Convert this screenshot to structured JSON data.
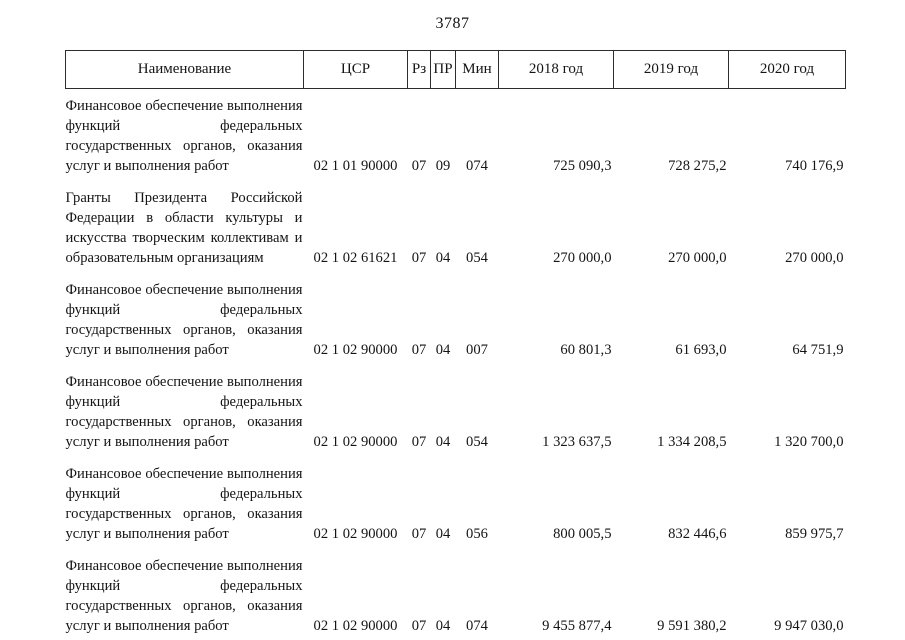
{
  "page": {
    "number": "3787"
  },
  "table": {
    "headers": [
      "Наименование",
      "ЦСР",
      "Рз",
      "ПР",
      "Мин",
      "2018 год",
      "2019 год",
      "2020 год"
    ],
    "rows": [
      {
        "name": "Финансовое обеспечение выполнения функций федеральных государственных органов, оказания услуг и выполнения работ",
        "csr": "02 1 01 90000",
        "rz": "07",
        "pr": "09",
        "min": "074",
        "y2018": "725 090,3",
        "y2019": "728 275,2",
        "y2020": "740 176,9"
      },
      {
        "name": "Гранты Президента Российской Федерации в области культуры и искусства творческим коллективам и образовательным организациям",
        "csr": "02 1 02 61621",
        "rz": "07",
        "pr": "04",
        "min": "054",
        "y2018": "270 000,0",
        "y2019": "270 000,0",
        "y2020": "270 000,0"
      },
      {
        "name": "Финансовое обеспечение выполнения функций федеральных государственных органов, оказания услуг и выполнения работ",
        "csr": "02 1 02 90000",
        "rz": "07",
        "pr": "04",
        "min": "007",
        "y2018": "60 801,3",
        "y2019": "61 693,0",
        "y2020": "64 751,9"
      },
      {
        "name": "Финансовое обеспечение выполнения функций федеральных государственных органов, оказания услуг и выполнения работ",
        "csr": "02 1 02 90000",
        "rz": "07",
        "pr": "04",
        "min": "054",
        "y2018": "1 323 637,5",
        "y2019": "1 334 208,5",
        "y2020": "1 320 700,0"
      },
      {
        "name": "Финансовое обеспечение выполнения функций федеральных государственных органов, оказания услуг и выполнения работ",
        "csr": "02 1 02 90000",
        "rz": "07",
        "pr": "04",
        "min": "056",
        "y2018": "800 005,5",
        "y2019": "832 446,6",
        "y2020": "859 975,7"
      },
      {
        "name": "Финансовое обеспечение выполнения функций федеральных государственных органов, оказания услуг и выполнения работ",
        "csr": "02 1 02 90000",
        "rz": "07",
        "pr": "04",
        "min": "074",
        "y2018": "9 455 877,4",
        "y2019": "9 591 380,2",
        "y2020": "9 947 030,0"
      }
    ]
  }
}
